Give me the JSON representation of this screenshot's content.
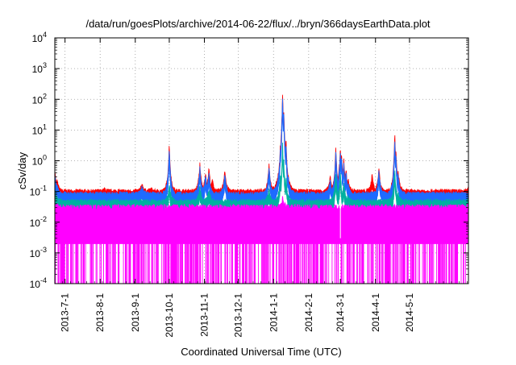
{
  "chart_data": {
    "type": "line",
    "title": "/data/run/goesPlots/archive/2014-06-22/flux/../bryn/366daysEarthData.plot",
    "xlabel": "Coordinated Universal Time (UTC)",
    "ylabel": "cSv/day",
    "x_type": "date",
    "xlim": [
      "2013-06-22",
      "2014-06-22"
    ],
    "ylim": [
      0.0001,
      10000
    ],
    "y_scale": "log",
    "y_ticks": [
      {
        "value": 0.0001,
        "base": "10",
        "exp": "-4"
      },
      {
        "value": 0.001,
        "base": "10",
        "exp": "-3"
      },
      {
        "value": 0.01,
        "base": "10",
        "exp": "-2"
      },
      {
        "value": 0.1,
        "base": "10",
        "exp": "-1"
      },
      {
        "value": 1,
        "base": "10",
        "exp": "0"
      },
      {
        "value": 10,
        "base": "10",
        "exp": "1"
      },
      {
        "value": 100,
        "base": "10",
        "exp": "2"
      },
      {
        "value": 1000,
        "base": "10",
        "exp": "3"
      },
      {
        "value": 10000,
        "base": "10",
        "exp": "4"
      }
    ],
    "x_ticks": [
      {
        "value": "2013-07-01",
        "label": "2013-7-1"
      },
      {
        "value": "2013-08-01",
        "label": "2013-8-1"
      },
      {
        "value": "2013-09-01",
        "label": "2013-9-1"
      },
      {
        "value": "2013-10-01",
        "label": "2013-10-1"
      },
      {
        "value": "2013-11-01",
        "label": "2013-11-1"
      },
      {
        "value": "2013-12-01",
        "label": "2013-12-1"
      },
      {
        "value": "2014-01-01",
        "label": "2014-1-1"
      },
      {
        "value": "2014-02-01",
        "label": "2014-2-1"
      },
      {
        "value": "2014-03-01",
        "label": "2014-3-1"
      },
      {
        "value": "2014-04-01",
        "label": "2014-4-1"
      },
      {
        "value": "2014-05-01",
        "label": "2014-5-1"
      }
    ],
    "grid": true,
    "legend": "none",
    "series": [
      {
        "color": "#ff0000",
        "baseline": 0.085,
        "values": [
          [
            "2013-06-22",
            0.45
          ],
          [
            "2013-06-24",
            0.2
          ],
          [
            "2013-06-26",
            0.09
          ],
          [
            "2013-08-05",
            0.1
          ],
          [
            "2013-08-18",
            0.07
          ],
          [
            "2013-09-07",
            0.15
          ],
          [
            "2013-09-15",
            0.1
          ],
          [
            "2013-10-01",
            3.0
          ],
          [
            "2013-10-03",
            0.15
          ],
          [
            "2013-10-28",
            0.7
          ],
          [
            "2013-11-02",
            0.35
          ],
          [
            "2013-11-05",
            0.5
          ],
          [
            "2013-11-08",
            0.2
          ],
          [
            "2013-11-19",
            0.45
          ],
          [
            "2013-12-28",
            0.7
          ],
          [
            "2014-01-07",
            2.8
          ],
          [
            "2014-01-09",
            125
          ],
          [
            "2014-01-10",
            40
          ],
          [
            "2014-01-12",
            5.0
          ],
          [
            "2014-01-14",
            0.3
          ],
          [
            "2014-02-20",
            0.25
          ],
          [
            "2014-02-25",
            2.3
          ],
          [
            "2014-02-28",
            0.6
          ],
          [
            "2014-03-01",
            2.5
          ],
          [
            "2014-03-02",
            1.6
          ],
          [
            "2014-03-04",
            0.9
          ],
          [
            "2014-03-06",
            0.45
          ],
          [
            "2014-03-08",
            0.2
          ],
          [
            "2014-03-29",
            0.3
          ],
          [
            "2014-04-04",
            0.5
          ],
          [
            "2014-04-18",
            6.5
          ],
          [
            "2014-04-19",
            2.0
          ],
          [
            "2014-04-21",
            0.4
          ],
          [
            "2014-06-22",
            0.1
          ]
        ]
      },
      {
        "color": "#1e6bff",
        "baseline": 0.07,
        "values": [
          [
            "2013-06-22",
            0.35
          ],
          [
            "2013-06-24",
            0.15
          ],
          [
            "2013-06-26",
            0.075
          ],
          [
            "2013-09-07",
            0.12
          ],
          [
            "2013-10-01",
            2.0
          ],
          [
            "2013-10-03",
            0.12
          ],
          [
            "2013-10-28",
            0.55
          ],
          [
            "2013-11-02",
            0.28
          ],
          [
            "2013-11-05",
            0.35
          ],
          [
            "2013-11-19",
            0.3
          ],
          [
            "2013-12-28",
            0.55
          ],
          [
            "2014-01-07",
            2.0
          ],
          [
            "2014-01-09",
            85
          ],
          [
            "2014-01-10",
            30
          ],
          [
            "2014-01-12",
            3.5
          ],
          [
            "2014-01-14",
            0.25
          ],
          [
            "2014-02-20",
            0.2
          ],
          [
            "2014-02-25",
            1.8
          ],
          [
            "2014-02-28",
            0.45
          ],
          [
            "2014-03-01",
            1.8
          ],
          [
            "2014-03-02",
            1.2
          ],
          [
            "2014-03-04",
            0.7
          ],
          [
            "2014-03-06",
            0.35
          ],
          [
            "2014-03-08",
            0.15
          ],
          [
            "2014-04-04",
            0.4
          ],
          [
            "2014-04-18",
            4.5
          ],
          [
            "2014-04-19",
            1.5
          ],
          [
            "2014-04-21",
            0.3
          ],
          [
            "2014-06-22",
            0.075
          ]
        ]
      },
      {
        "color": "#00b0a0",
        "baseline": 0.04,
        "values": [
          [
            "2013-06-22",
            0.1
          ],
          [
            "2013-06-26",
            0.045
          ],
          [
            "2013-10-01",
            0.15
          ],
          [
            "2013-10-28",
            0.12
          ],
          [
            "2013-11-05",
            0.1
          ],
          [
            "2013-12-28",
            0.1
          ],
          [
            "2014-01-07",
            0.3
          ],
          [
            "2014-01-09",
            3.0
          ],
          [
            "2014-01-10",
            1.0
          ],
          [
            "2014-01-12",
            0.25
          ],
          [
            "2014-01-14",
            0.06
          ],
          [
            "2014-02-25",
            0.3
          ],
          [
            "2014-03-01",
            0.35
          ],
          [
            "2014-03-04",
            0.15
          ],
          [
            "2014-03-08",
            0.06
          ],
          [
            "2014-04-18",
            0.4
          ],
          [
            "2014-04-21",
            0.07
          ],
          [
            "2014-06-22",
            0.045
          ]
        ]
      },
      {
        "color": "#ff00ff",
        "baseline": 0.03,
        "floor": 0.002,
        "values": [
          [
            "2013-06-22",
            0.035
          ],
          [
            "2014-01-09",
            0.06
          ],
          [
            "2014-06-22",
            0.035
          ]
        ]
      }
    ]
  }
}
